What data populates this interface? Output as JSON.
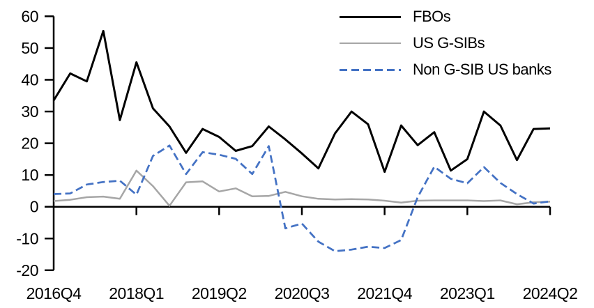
{
  "chart_data": {
    "type": "line",
    "title": "",
    "xlabel": "",
    "ylabel": "",
    "ylim": [
      -20,
      60
    ],
    "y_ticks": [
      60,
      50,
      40,
      30,
      20,
      10,
      0,
      -10,
      -20
    ],
    "grid": false,
    "legend_position": "top-right",
    "categories": [
      "2016Q4",
      "2017Q1",
      "2017Q2",
      "2017Q3",
      "2017Q4",
      "2018Q1",
      "2018Q2",
      "2018Q3",
      "2018Q4",
      "2019Q1",
      "2019Q2",
      "2019Q3",
      "2019Q4",
      "2020Q1",
      "2020Q2",
      "2020Q3",
      "2020Q4",
      "2021Q1",
      "2021Q2",
      "2021Q3",
      "2021Q4",
      "2022Q1",
      "2022Q2",
      "2022Q3",
      "2022Q4",
      "2023Q1",
      "2023Q2",
      "2023Q3",
      "2023Q4",
      "2024Q1",
      "2024Q2"
    ],
    "x_tick_labels": [
      {
        "label": "2016Q4",
        "index": 0
      },
      {
        "label": "2018Q1",
        "index": 5
      },
      {
        "label": "2019Q2",
        "index": 10
      },
      {
        "label": "2020Q3",
        "index": 15
      },
      {
        "label": "2021Q4",
        "index": 20
      },
      {
        "label": "2023Q1",
        "index": 25
      },
      {
        "label": "2024Q2",
        "index": 30
      }
    ],
    "series": [
      {
        "name": "FBOs",
        "color": "#000000",
        "style": "solid",
        "width": 3,
        "values": [
          33.5,
          42,
          39.5,
          55.4,
          27.3,
          45.5,
          31,
          25.3,
          17,
          24.5,
          22,
          17.6,
          19.1,
          25.3,
          21.2,
          16.8,
          12.1,
          23.1,
          30,
          26,
          11,
          25.6,
          19.4,
          23.5,
          11.4,
          15,
          30,
          25.6,
          14.7,
          24.5,
          24.7
        ]
      },
      {
        "name": "US G-SIBs",
        "color": "#a6a6a6",
        "style": "solid",
        "width": 2.5,
        "values": [
          1.8,
          2.2,
          3,
          3.2,
          2.5,
          11.4,
          6.5,
          0.3,
          7.7,
          8,
          4.8,
          5.8,
          3.3,
          3.4,
          4.7,
          3.3,
          2.5,
          2.3,
          2.4,
          2.3,
          1.9,
          1.3,
          1.9,
          2,
          2,
          2,
          1.8,
          2,
          0.8,
          1.4,
          1.6
        ]
      },
      {
        "name": "Non G-SIB US banks",
        "color": "#4472c4",
        "style": "dashed",
        "width": 2.75,
        "values": [
          4,
          4.2,
          7,
          7.8,
          8.2,
          3.8,
          16,
          19.3,
          10.3,
          17.2,
          16.4,
          15.1,
          10.3,
          19.1,
          -6.8,
          -5.3,
          -11,
          -14,
          -13.5,
          -12.6,
          -13,
          -10.5,
          3,
          12.6,
          8.8,
          7.4,
          12.5,
          7.5,
          4,
          1,
          1.7
        ]
      }
    ]
  },
  "legend": {
    "items": [
      {
        "label": "FBOs"
      },
      {
        "label": "US G-SIBs"
      },
      {
        "label": "Non G-SIB US banks"
      }
    ]
  }
}
